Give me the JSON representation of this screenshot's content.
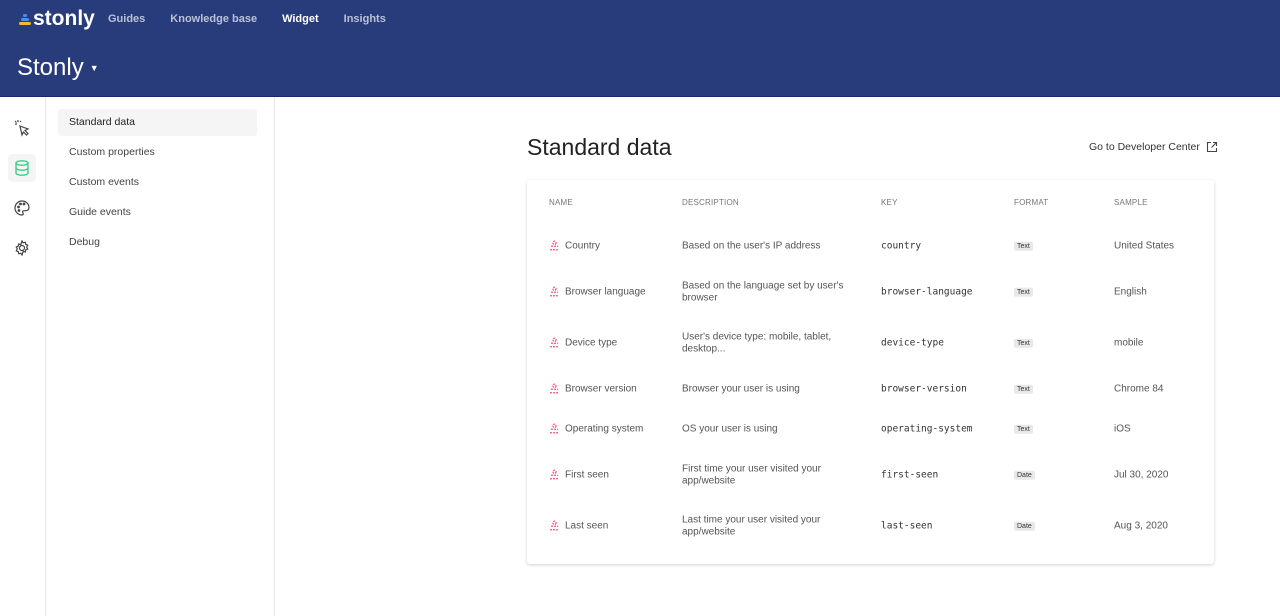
{
  "header": {
    "brand": "stonly",
    "nav": [
      {
        "label": "Guides",
        "active": false
      },
      {
        "label": "Knowledge base",
        "active": false
      },
      {
        "label": "Widget",
        "active": true
      },
      {
        "label": "Insights",
        "active": false
      }
    ],
    "workspace": "Stonly"
  },
  "rail": [
    {
      "icon": "cursor-click-icon"
    },
    {
      "icon": "database-icon",
      "active": true
    },
    {
      "icon": "palette-icon"
    },
    {
      "icon": "gear-icon"
    }
  ],
  "subnav": [
    {
      "label": "Standard data",
      "active": true
    },
    {
      "label": "Custom properties"
    },
    {
      "label": "Custom events"
    },
    {
      "label": "Guide events"
    },
    {
      "label": "Debug"
    }
  ],
  "main": {
    "title": "Standard data",
    "developer_link": "Go to Developer Center",
    "columns": [
      "NAME",
      "DESCRIPTION",
      "KEY",
      "FORMAT",
      "SAMPLE"
    ],
    "rows": [
      {
        "name": "Country",
        "description": "Based on the user's IP address",
        "key": "country",
        "format": "Text",
        "sample": "United States"
      },
      {
        "name": "Browser language",
        "description": "Based on the language set by user's browser",
        "key": "browser-language",
        "format": "Text",
        "sample": "English"
      },
      {
        "name": "Device type",
        "description": "User's device type: mobile, tablet, desktop...",
        "key": "device-type",
        "format": "Text",
        "sample": "mobile"
      },
      {
        "name": "Browser version",
        "description": "Browser your user is using",
        "key": "browser-version",
        "format": "Text",
        "sample": "Chrome 84"
      },
      {
        "name": "Operating system",
        "description": "OS your user is using",
        "key": "operating-system",
        "format": "Text",
        "sample": "iOS"
      },
      {
        "name": "First seen",
        "description": "First time your user visited your app/website",
        "key": "first-seen",
        "format": "Date",
        "sample": "Jul 30, 2020"
      },
      {
        "name": "Last seen",
        "description": "Last time your user visited your app/website",
        "key": "last-seen",
        "format": "Date",
        "sample": "Aug 3, 2020"
      }
    ]
  },
  "colors": {
    "header": "#283b7a",
    "accent_green": "#3ecf8e",
    "row_icon": "#f0557a"
  }
}
